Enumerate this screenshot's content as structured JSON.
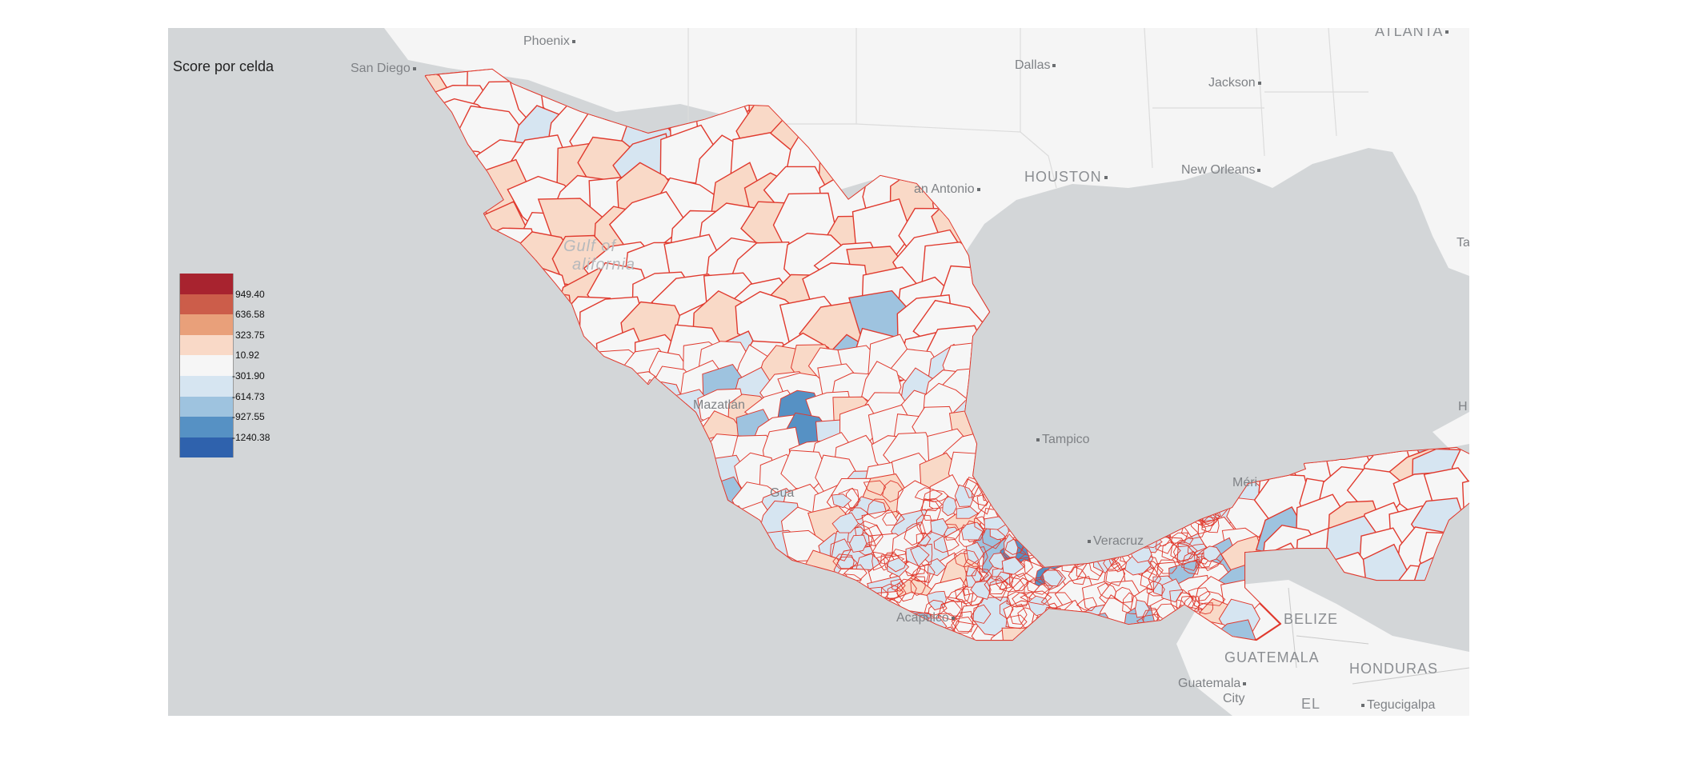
{
  "map": {
    "legend_title": "Score por celda",
    "legend": {
      "colors": [
        "#a8232f",
        "#cc5d4a",
        "#e9a07a",
        "#f9d9c7",
        "#f6f6f6",
        "#d6e5f1",
        "#9ec3df",
        "#5691c4",
        "#2f62ad"
      ],
      "ticks": [
        "949.40",
        "636.58",
        "323.75",
        "10.92",
        "-301.90",
        "-614.73",
        "-927.55",
        "-1240.38"
      ]
    },
    "places": {
      "phoenix": "Phoenix",
      "san_diego": "San Diego",
      "dallas": "Dallas",
      "jackson": "Jackson",
      "atlanta": "ATLANTA",
      "houston": "HOUSTON",
      "san_antonio": "an Antonio",
      "new_orleans": "New Orleans",
      "gulf_of_california_1": "Gulf of",
      "gulf_of_california_2": "alifornia",
      "mazatlan": "Mazatlán",
      "tampico": "Tampico",
      "veracruz": "Veracruz",
      "acapulco": "Acapulco",
      "merida": "Méri",
      "belize": "BELIZE",
      "guatemala": "GUATEMALA",
      "honduras": "HONDURAS",
      "guatemala_city_1": "Guatemala",
      "guatemala_city_2": "City",
      "el_salvador": "EL",
      "tegucigalpa": "Tegucigalpa",
      "guadalajara": "Gua",
      "tampa_edge": "Ta",
      "havana_edge": "H"
    },
    "colors": {
      "ocean": "#d3d6d8",
      "land": "#f4f4f4",
      "border": "#e03a2e",
      "state_lines": "#dcdcdc"
    }
  }
}
